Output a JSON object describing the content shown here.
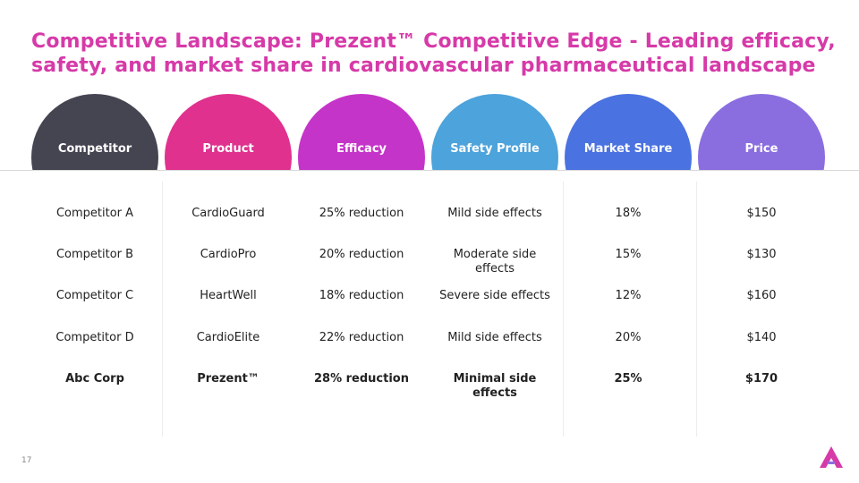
{
  "slide": {
    "title": "Competitive Landscape: Prezent™ Competitive Edge - Leading efficacy, safety, and market share in cardiovascular pharmaceutical landscape",
    "page_number": "17"
  },
  "colors": {
    "title": "#d63aa8",
    "competitor": "#454552",
    "product": "#e0318e",
    "efficacy": "#c534c9",
    "safety": "#4da3db",
    "market_share": "#4a72e0",
    "price": "#8a6ee0"
  },
  "table": {
    "headers": [
      "Competitor",
      "Product",
      "Efficacy",
      "Safety Profile",
      "Market Share",
      "Price"
    ],
    "rows": [
      [
        "Competitor A",
        "CardioGuard",
        "25% reduction",
        "Mild side effects",
        "18%",
        "$150"
      ],
      [
        "Competitor B",
        "CardioPro",
        "20% reduction",
        "Moderate side effects",
        "15%",
        "$130"
      ],
      [
        "Competitor C",
        "HeartWell",
        "18% reduction",
        "Severe side effects",
        "12%",
        "$160"
      ],
      [
        "Competitor D",
        "CardioElite",
        "22% reduction",
        "Mild side effects",
        "20%",
        "$140"
      ],
      [
        "Abc Corp",
        "Prezent™",
        "28% reduction",
        "Minimal side effects",
        "25%",
        "$170"
      ]
    ]
  },
  "logo": {
    "icon": "prezent-logo-icon"
  }
}
